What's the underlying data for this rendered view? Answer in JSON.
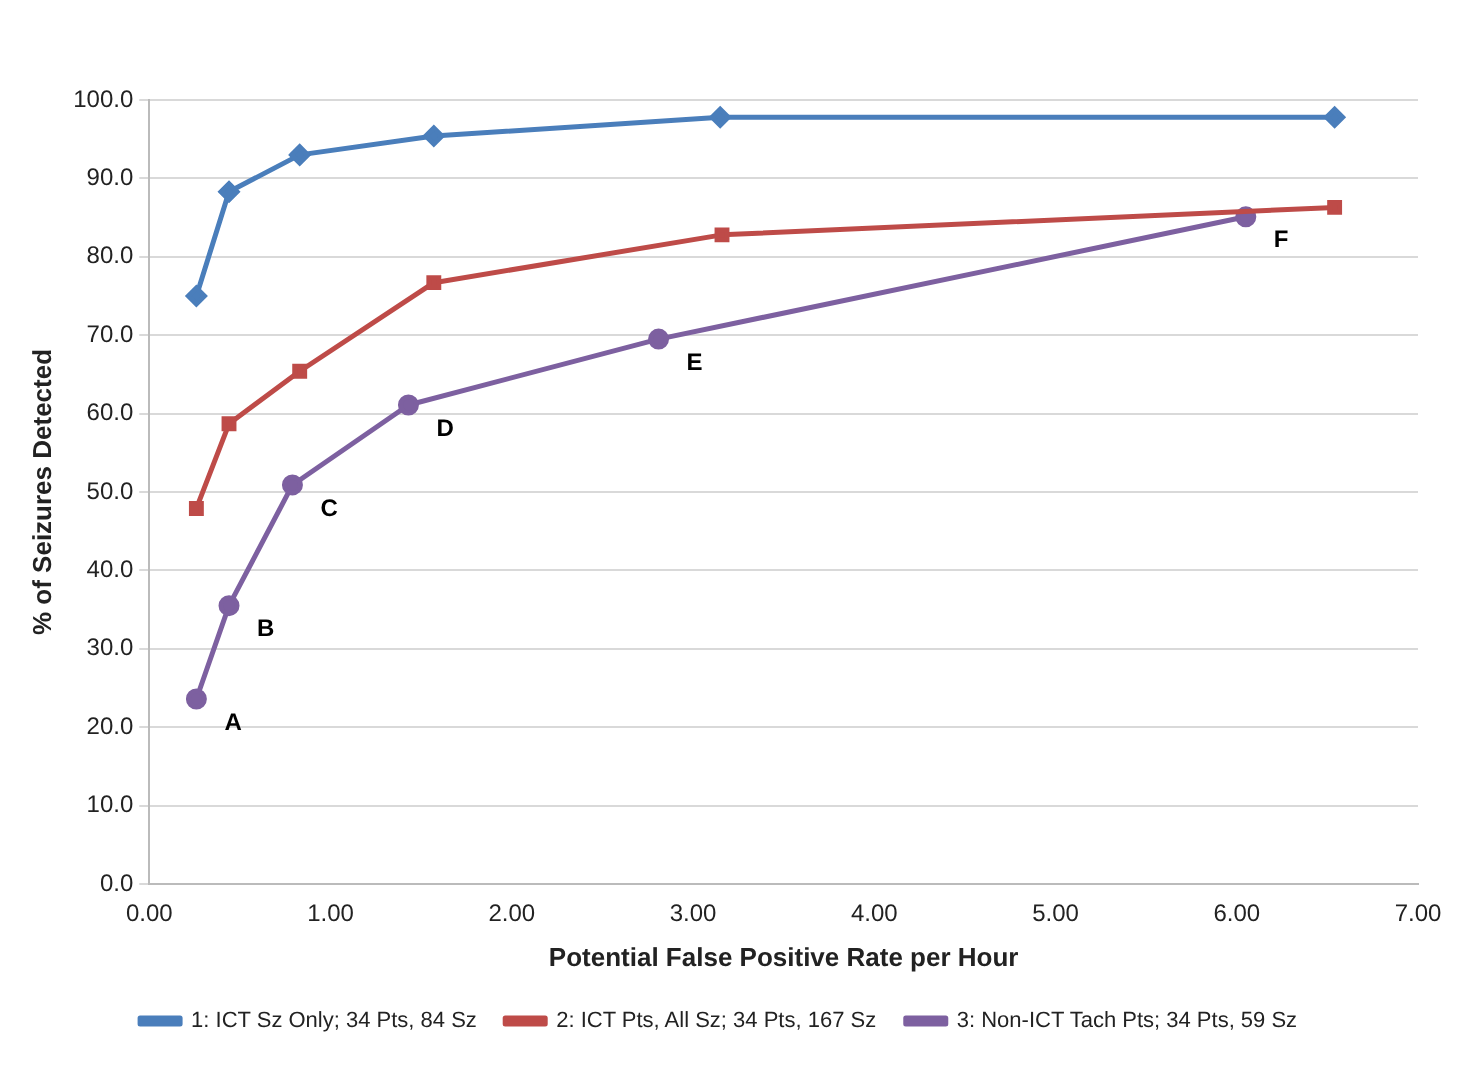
{
  "chart_data": {
    "type": "line",
    "xlabel": "Potential False Positive Rate per Hour",
    "ylabel": "% of Seizures Detected",
    "xlim": [
      0,
      7
    ],
    "xticks": [
      {
        "value": 0,
        "label": "0.00"
      },
      {
        "value": 1,
        "label": "1.00"
      },
      {
        "value": 2,
        "label": "2.00"
      },
      {
        "value": 3,
        "label": "3.00"
      },
      {
        "value": 4,
        "label": "4.00"
      },
      {
        "value": 5,
        "label": "5.00"
      },
      {
        "value": 6,
        "label": "6.00"
      },
      {
        "value": 7,
        "label": "7.00"
      }
    ],
    "ylim": [
      0,
      100
    ],
    "yticks": [
      {
        "value": 0,
        "label": "0.0"
      },
      {
        "value": 10,
        "label": "10.0"
      },
      {
        "value": 20,
        "label": "20.0"
      },
      {
        "value": 30,
        "label": "30.0"
      },
      {
        "value": 40,
        "label": "40.0"
      },
      {
        "value": 50,
        "label": "50.0"
      },
      {
        "value": 60,
        "label": "60.0"
      },
      {
        "value": 70,
        "label": "70.0"
      },
      {
        "value": 80,
        "label": "80.0"
      },
      {
        "value": 90,
        "label": "90.0"
      },
      {
        "value": 100,
        "label": "100.0"
      }
    ],
    "grid": "y",
    "legend": "bottom",
    "line_style": "solid",
    "series": [
      {
        "name": "1: ICT Sz Only; 34 Pts, 84 Sz",
        "color": "#4a7ebb",
        "marker": "diamond",
        "x": [
          0.26,
          0.44,
          0.83,
          1.57,
          3.15,
          6.54
        ],
        "values": [
          75.0,
          88.3,
          93.0,
          95.4,
          97.8,
          97.8
        ]
      },
      {
        "name": "2: ICT Pts, All Sz; 34 Pts, 167 Sz",
        "color": "#be4b48",
        "marker": "square",
        "x": [
          0.26,
          0.44,
          0.83,
          1.57,
          3.16,
          6.54
        ],
        "values": [
          47.9,
          58.7,
          65.4,
          76.7,
          82.8,
          86.3
        ]
      },
      {
        "name": "3: Non-ICT Tach Pts; 34 Pts, 59 Sz",
        "color": "#7d60a0",
        "marker": "circle",
        "x": [
          0.26,
          0.44,
          0.79,
          1.43,
          2.81,
          6.05
        ],
        "values": [
          23.6,
          35.5,
          50.9,
          61.1,
          69.5,
          85.1
        ]
      }
    ],
    "annotations": [
      {
        "text": "A",
        "x": 0.26,
        "y": 23.6
      },
      {
        "text": "B",
        "x": 0.44,
        "y": 35.5
      },
      {
        "text": "C",
        "x": 0.79,
        "y": 50.9
      },
      {
        "text": "D",
        "x": 1.43,
        "y": 61.1
      },
      {
        "text": "E",
        "x": 2.81,
        "y": 69.5
      },
      {
        "text": "F",
        "x": 6.05,
        "y": 85.1
      }
    ]
  }
}
